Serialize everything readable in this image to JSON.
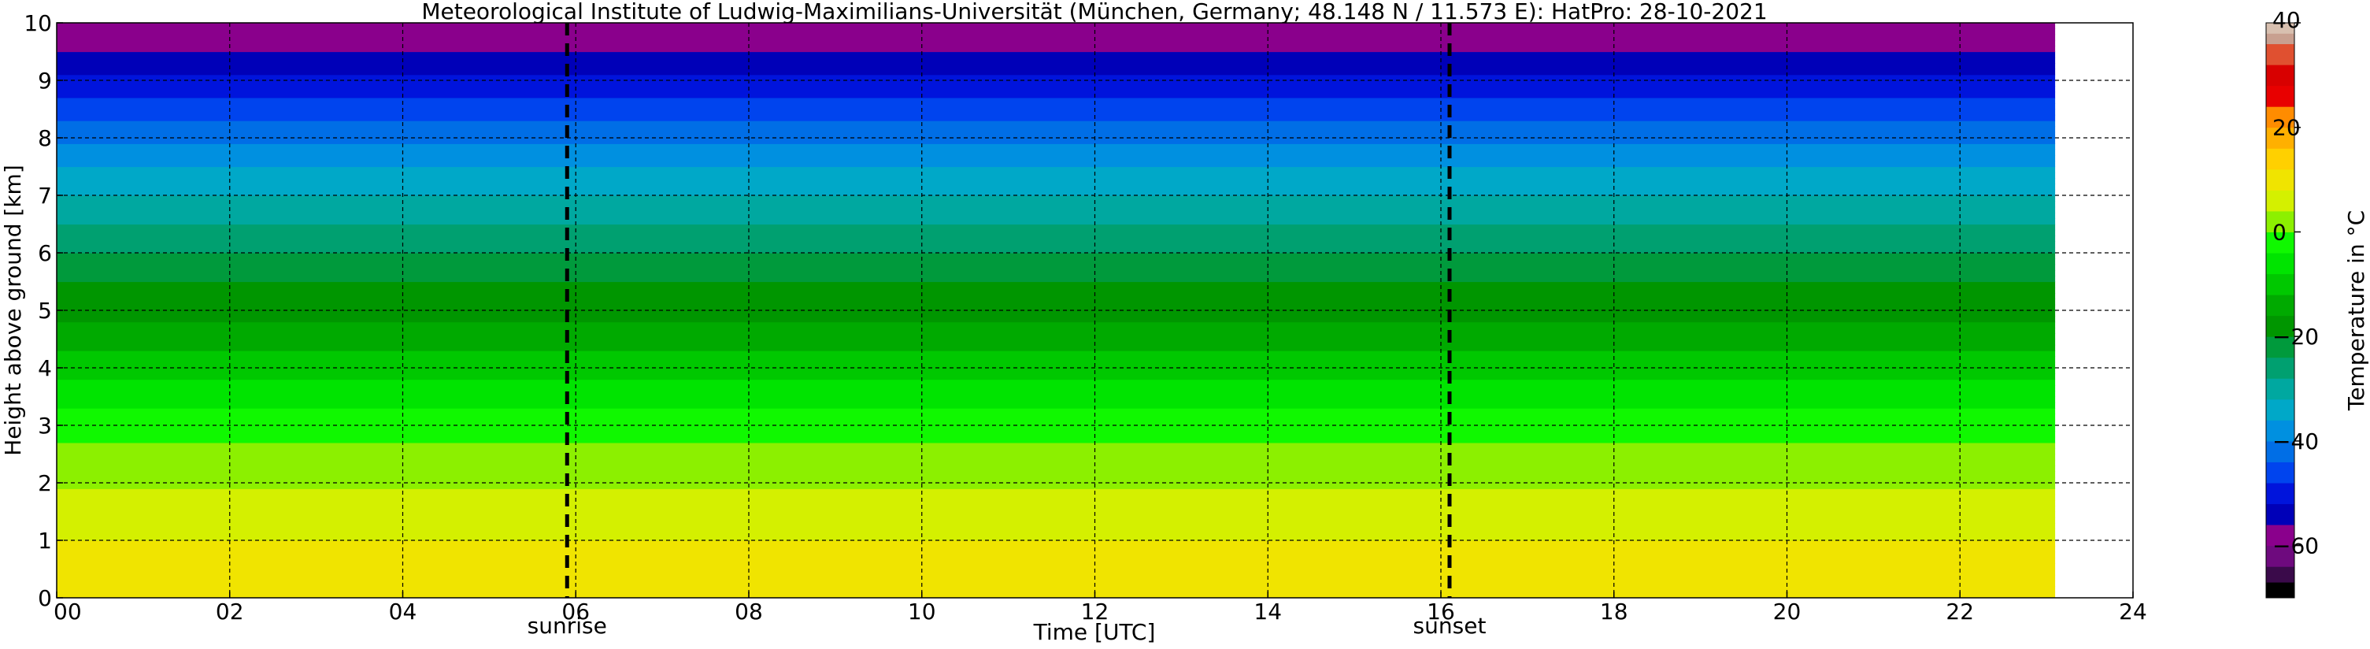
{
  "figure": {
    "title": "Meteorological Institute of Ludwig-Maximilians-Universität (München, Germany; 48.148 N / 11.573 E):    HatPro: 28-10-2021"
  },
  "chart_data": {
    "type": "heatmap",
    "title": "Meteorological Institute of Ludwig-Maximilians-Universität (München, Germany; 48.148 N / 11.573 E):    HatPro: 28-10-2021",
    "xlabel": "Time [UTC]",
    "ylabel": "Height above ground [km]",
    "xlim": [
      0,
      24
    ],
    "ylim": [
      0,
      10
    ],
    "x_ticks": [
      "00",
      "02",
      "04",
      "06",
      "08",
      "10",
      "12",
      "14",
      "16",
      "18",
      "20",
      "22",
      "24"
    ],
    "x_tick_values": [
      0,
      2,
      4,
      6,
      8,
      10,
      12,
      14,
      16,
      18,
      20,
      22,
      24
    ],
    "y_ticks": [
      "0",
      "1",
      "2",
      "3",
      "4",
      "5",
      "6",
      "7",
      "8",
      "9",
      "10"
    ],
    "y_tick_values": [
      0,
      1,
      2,
      3,
      4,
      5,
      6,
      7,
      8,
      9,
      10
    ],
    "grid": true,
    "data_time_range": [
      0,
      23.1
    ],
    "annotations": [
      {
        "label": "sunrise",
        "x": 5.9
      },
      {
        "label": "sunset",
        "x": 16.1
      }
    ],
    "temperature_profile_celsius": {
      "heights_km": [
        0,
        0.5,
        1,
        1.5,
        2,
        2.5,
        3,
        3.5,
        4,
        4.5,
        5,
        5.5,
        6,
        6.5,
        7,
        7.5,
        8,
        8.5,
        9,
        9.5,
        10
      ],
      "values": [
        11,
        10,
        8,
        6,
        3.5,
        1,
        -2,
        -6,
        -10,
        -14,
        -17,
        -20,
        -24,
        -28,
        -32,
        -36,
        -41,
        -46,
        -51,
        -56,
        -58
      ]
    },
    "colorbar": {
      "label": "Temperature in °C",
      "range": [
        -70,
        40
      ],
      "ticks": [
        "40",
        "20",
        "0",
        "−20",
        "−40",
        "−60"
      ],
      "tick_values": [
        40,
        20,
        0,
        -20,
        -40,
        -60
      ],
      "levels": [
        -70,
        -67,
        -64,
        -60,
        -56,
        -52,
        -48,
        -44,
        -40,
        -36,
        -32,
        -28,
        -24,
        -20,
        -16,
        -12,
        -8,
        -4,
        0,
        4,
        8,
        12,
        16,
        20,
        24,
        28,
        32,
        36,
        38,
        40
      ],
      "colors": [
        "#000000",
        "#3a0a4a",
        "#6e0a7e",
        "#8a008c",
        "#0000b8",
        "#0014dc",
        "#0044ee",
        "#006ee6",
        "#0090e0",
        "#00a8c8",
        "#00a8a0",
        "#00a070",
        "#009a3c",
        "#009600",
        "#00aa00",
        "#00c800",
        "#00e400",
        "#10f800",
        "#8cf000",
        "#d4f000",
        "#f0e400",
        "#ffd000",
        "#ffb000",
        "#ff8c00",
        "#e80000",
        "#d80000",
        "#e05030",
        "#c8a090",
        "#d8c0b0"
      ]
    }
  }
}
